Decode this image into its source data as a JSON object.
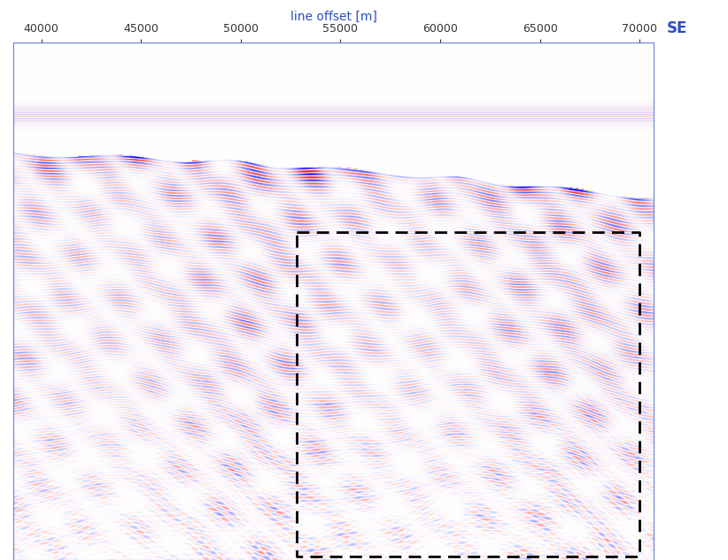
{
  "chart_data": {
    "type": "image",
    "x_label": "line offset [m]",
    "xlim": [
      38600,
      70700
    ],
    "xticks": [
      40000,
      45000,
      50000,
      55000,
      60000,
      65000,
      70000
    ],
    "annotation": "SE",
    "box_x": [
      52800,
      70000
    ],
    "tick_labels": "x"
  }
}
